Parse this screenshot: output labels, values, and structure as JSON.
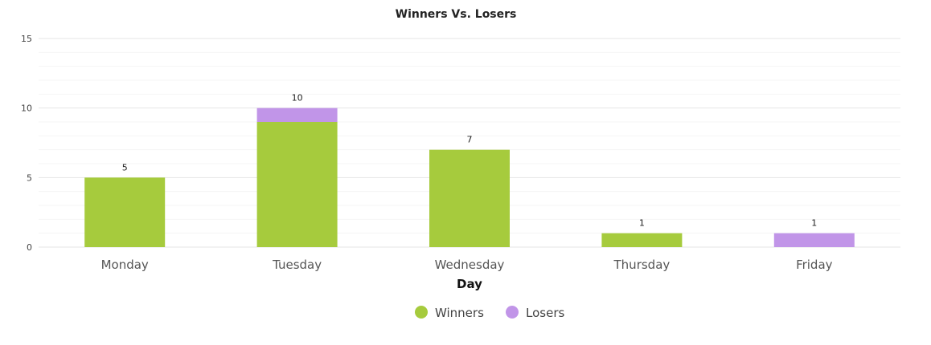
{
  "chart_data": {
    "type": "bar",
    "stacked": true,
    "title": "Winners Vs. Losers",
    "xlabel": "Day",
    "ylabel": "",
    "categories": [
      "Monday",
      "Tuesday",
      "Wednesday",
      "Thursday",
      "Friday"
    ],
    "series": [
      {
        "name": "Winners",
        "color": "#a6cb3d",
        "values": [
          5,
          9,
          7,
          1,
          0
        ]
      },
      {
        "name": "Losers",
        "color": "#c195e8",
        "values": [
          0,
          1,
          0,
          0,
          1
        ]
      }
    ],
    "totals": [
      "5",
      "10",
      "7",
      "1",
      "1"
    ],
    "ylim": [
      0,
      15
    ],
    "yticks": [
      "0",
      "5",
      "10",
      "15"
    ],
    "grid": true,
    "legend_position": "bottom"
  }
}
